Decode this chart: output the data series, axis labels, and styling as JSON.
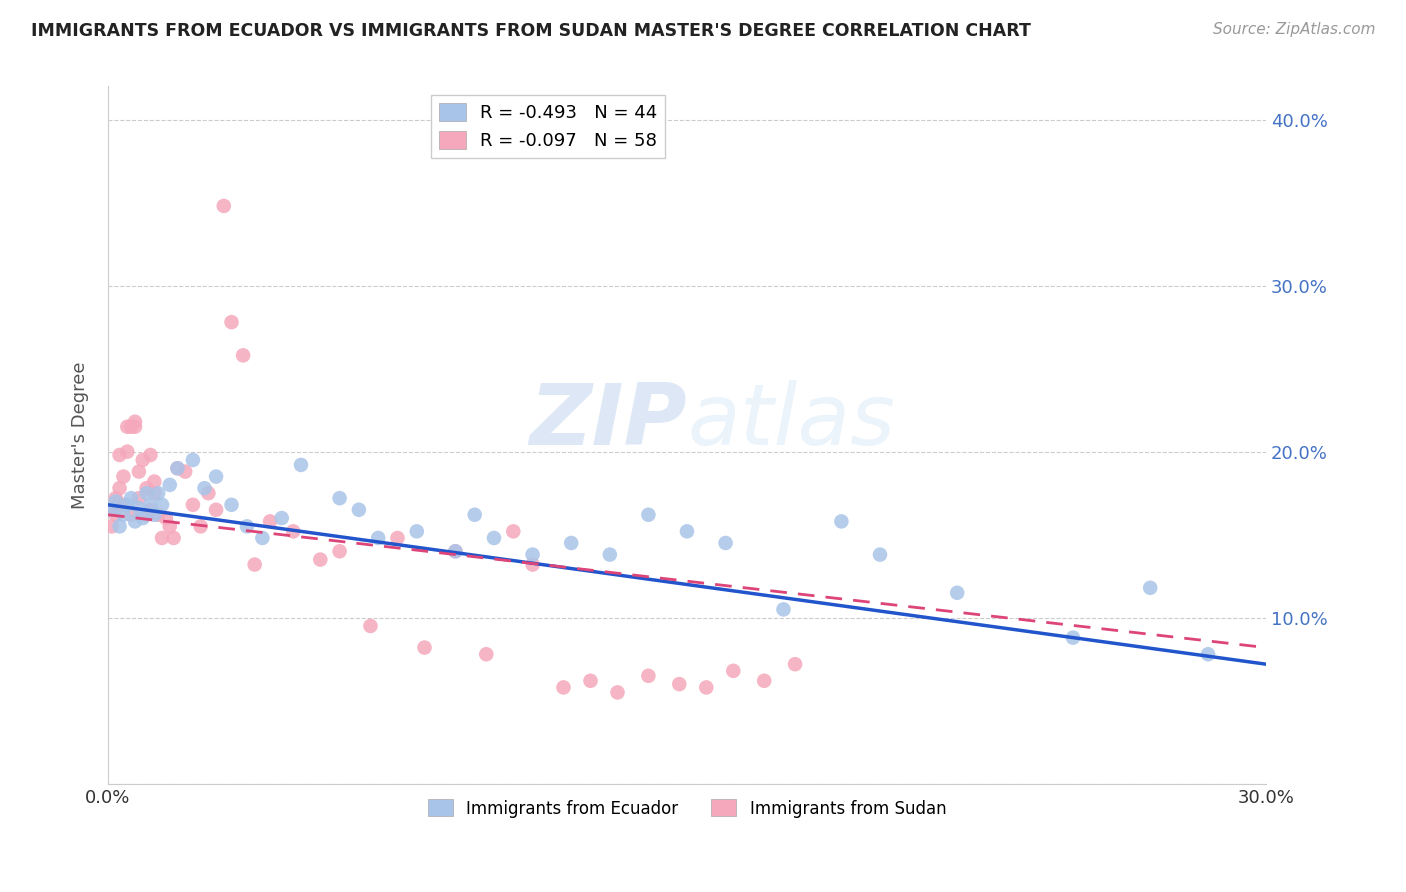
{
  "title": "IMMIGRANTS FROM ECUADOR VS IMMIGRANTS FROM SUDAN MASTER'S DEGREE CORRELATION CHART",
  "source": "Source: ZipAtlas.com",
  "ylabel": "Master's Degree",
  "x_min": 0.0,
  "x_max": 0.3,
  "y_min": 0.0,
  "y_max": 0.42,
  "x_ticks": [
    0.0,
    0.05,
    0.1,
    0.15,
    0.2,
    0.25,
    0.3
  ],
  "y_ticks": [
    0.0,
    0.1,
    0.2,
    0.3,
    0.4
  ],
  "ecuador_R": -0.493,
  "ecuador_N": 44,
  "sudan_R": -0.097,
  "sudan_N": 58,
  "ecuador_color": "#a8c4e8",
  "sudan_color": "#f5a8bb",
  "ecuador_line_color": "#2255cc",
  "sudan_line_color": "#dd4477",
  "watermark_zip": "ZIP",
  "watermark_atlas": "atlas",
  "ecuador_x": [
    0.001,
    0.002,
    0.003,
    0.004,
    0.005,
    0.006,
    0.007,
    0.008,
    0.009,
    0.01,
    0.011,
    0.012,
    0.013,
    0.014,
    0.016,
    0.018,
    0.022,
    0.025,
    0.028,
    0.032,
    0.036,
    0.04,
    0.045,
    0.05,
    0.06,
    0.065,
    0.07,
    0.08,
    0.09,
    0.095,
    0.1,
    0.11,
    0.12,
    0.13,
    0.14,
    0.15,
    0.16,
    0.175,
    0.19,
    0.2,
    0.22,
    0.25,
    0.27,
    0.285
  ],
  "ecuador_y": [
    0.165,
    0.17,
    0.155,
    0.162,
    0.168,
    0.172,
    0.158,
    0.166,
    0.16,
    0.175,
    0.168,
    0.162,
    0.175,
    0.168,
    0.18,
    0.19,
    0.195,
    0.178,
    0.185,
    0.168,
    0.155,
    0.148,
    0.16,
    0.192,
    0.172,
    0.165,
    0.148,
    0.152,
    0.14,
    0.162,
    0.148,
    0.138,
    0.145,
    0.138,
    0.162,
    0.152,
    0.145,
    0.105,
    0.158,
    0.138,
    0.115,
    0.088,
    0.118,
    0.078
  ],
  "sudan_x": [
    0.001,
    0.001,
    0.002,
    0.002,
    0.003,
    0.003,
    0.004,
    0.004,
    0.005,
    0.005,
    0.006,
    0.006,
    0.007,
    0.007,
    0.008,
    0.008,
    0.009,
    0.01,
    0.01,
    0.011,
    0.011,
    0.012,
    0.012,
    0.013,
    0.014,
    0.015,
    0.016,
    0.017,
    0.018,
    0.02,
    0.022,
    0.024,
    0.026,
    0.028,
    0.03,
    0.032,
    0.035,
    0.038,
    0.042,
    0.048,
    0.055,
    0.06,
    0.068,
    0.075,
    0.082,
    0.09,
    0.098,
    0.105,
    0.11,
    0.118,
    0.125,
    0.132,
    0.14,
    0.148,
    0.155,
    0.162,
    0.17,
    0.178
  ],
  "sudan_y": [
    0.155,
    0.165,
    0.162,
    0.172,
    0.178,
    0.198,
    0.185,
    0.168,
    0.2,
    0.215,
    0.215,
    0.162,
    0.215,
    0.218,
    0.188,
    0.172,
    0.195,
    0.178,
    0.162,
    0.165,
    0.198,
    0.175,
    0.182,
    0.162,
    0.148,
    0.16,
    0.155,
    0.148,
    0.19,
    0.188,
    0.168,
    0.155,
    0.175,
    0.165,
    0.348,
    0.278,
    0.258,
    0.132,
    0.158,
    0.152,
    0.135,
    0.14,
    0.095,
    0.148,
    0.082,
    0.14,
    0.078,
    0.152,
    0.132,
    0.058,
    0.062,
    0.055,
    0.065,
    0.06,
    0.058,
    0.068,
    0.062,
    0.072
  ],
  "ecuador_trend_x0": 0.0,
  "ecuador_trend_y0": 0.168,
  "ecuador_trend_x1": 0.3,
  "ecuador_trend_y1": 0.072,
  "sudan_trend_x0": 0.0,
  "sudan_trend_y0": 0.162,
  "sudan_trend_x1": 0.3,
  "sudan_trend_y1": 0.082
}
